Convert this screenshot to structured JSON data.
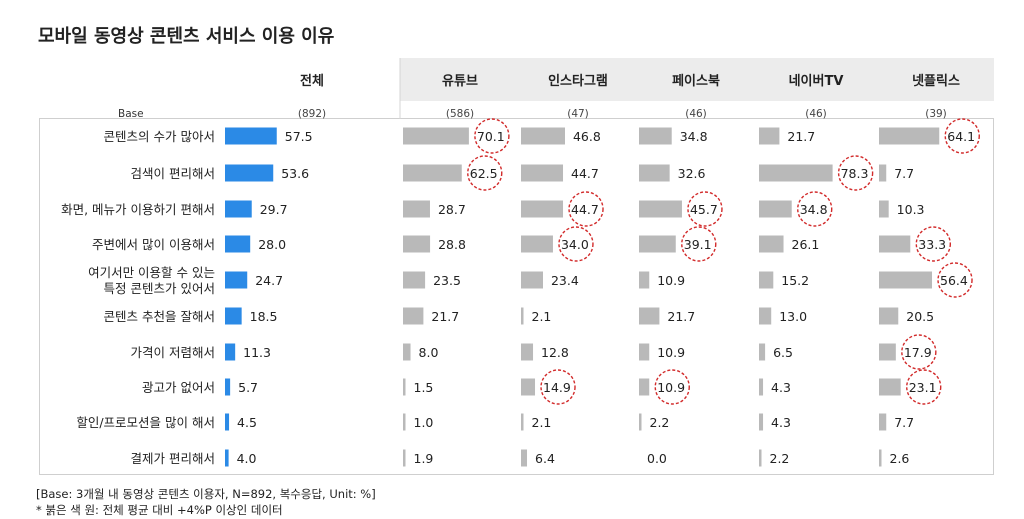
{
  "title": "모바일 동영상 콘텐츠 서비스 이용 이유",
  "base_label": "Base",
  "colors": {
    "total_bar": "#2b8ae6",
    "group_bar": "#b9b9b9",
    "highlight_circle": "#d22b2b",
    "header_bg": "#ececec"
  },
  "footnotes": [
    "[Base: 3개월 내 동영상 콘텐츠 이용자, N=892, 복수응답, Unit: %]",
    "* 붉은 색 원: 전체 평균 대비 +4%P 이상인 데이터"
  ],
  "chart_data": {
    "type": "bar",
    "orientation": "horizontal",
    "title": "모바일 동영상 콘텐츠 서비스 이용 이유",
    "unit": "%",
    "categories": [
      "콘텐츠의 수가 많아서",
      "검색이 편리해서",
      "화면, 메뉴가 이용하기 편해서",
      "주변에서 많이 이용해서",
      "여기서만 이용할 수 있는\n특정 콘텐츠가 있어서",
      "콘텐츠 추천을 잘해서",
      "가격이 저렴해서",
      "광고가 없어서",
      "할인/프로모션을 많이 해서",
      "결제가 편리해서"
    ],
    "series": [
      {
        "name": "전체",
        "base": "(892)",
        "values": [
          57.5,
          53.6,
          29.7,
          28.0,
          24.7,
          18.5,
          11.3,
          5.7,
          4.5,
          4.0
        ],
        "labels": [
          "57.5",
          "53.6",
          "29.7",
          "28.0",
          "24.7",
          "18.5",
          "11.3",
          "5.7",
          "4.5",
          "4.0"
        ],
        "highlight": []
      },
      {
        "name": "유튜브",
        "base": "(586)",
        "values": [
          70.1,
          62.5,
          28.7,
          28.8,
          23.5,
          21.7,
          8.0,
          1.5,
          1.0,
          1.9
        ],
        "labels": [
          "70.1",
          "62.5",
          "28.7",
          "28.8",
          "23.5",
          "21.7",
          "8.0",
          "1.5",
          "1.0",
          "1.9"
        ],
        "highlight": [
          0,
          1
        ]
      },
      {
        "name": "인스타그램",
        "base": "(47)",
        "values": [
          46.8,
          44.7,
          44.7,
          34.0,
          23.4,
          2.1,
          12.8,
          14.9,
          2.1,
          6.4
        ],
        "labels": [
          "46.8",
          "44.7",
          "44.7",
          "34.0",
          "23.4",
          "2.1",
          "12.8",
          "14.9",
          "2.1",
          "6.4"
        ],
        "highlight": [
          2,
          3,
          7
        ]
      },
      {
        "name": "페이스북",
        "base": "(46)",
        "values": [
          34.8,
          32.6,
          45.7,
          39.1,
          10.9,
          21.7,
          10.9,
          10.9,
          2.2,
          0.0
        ],
        "labels": [
          "34.8",
          "32.6",
          "45.7",
          "39.1",
          "10.9",
          "21.7",
          "10.9",
          "10.9",
          "2.2",
          "0.0"
        ],
        "highlight": [
          2,
          3,
          7
        ]
      },
      {
        "name": "네이버TV",
        "base": "(46)",
        "values": [
          21.7,
          78.3,
          34.8,
          26.1,
          15.2,
          13.0,
          6.5,
          4.3,
          4.3,
          2.2
        ],
        "labels": [
          "21.7",
          "78.3",
          "34.8",
          "26.1",
          "15.2",
          "13.0",
          "6.5",
          "4.3",
          "4.3",
          "2.2"
        ],
        "highlight": [
          1,
          2
        ]
      },
      {
        "name": "넷플릭스",
        "base": "(39)",
        "values": [
          64.1,
          7.7,
          10.3,
          33.3,
          56.4,
          20.5,
          17.9,
          23.1,
          7.7,
          2.6
        ],
        "labels": [
          "64.1",
          "7.7",
          "10.3",
          "33.3",
          "56.4",
          "20.5",
          "17.9",
          "23.1",
          "7.7",
          "2.6"
        ],
        "highlight": [
          0,
          3,
          4,
          6,
          7
        ]
      }
    ],
    "xlim": [
      0,
      100
    ]
  }
}
